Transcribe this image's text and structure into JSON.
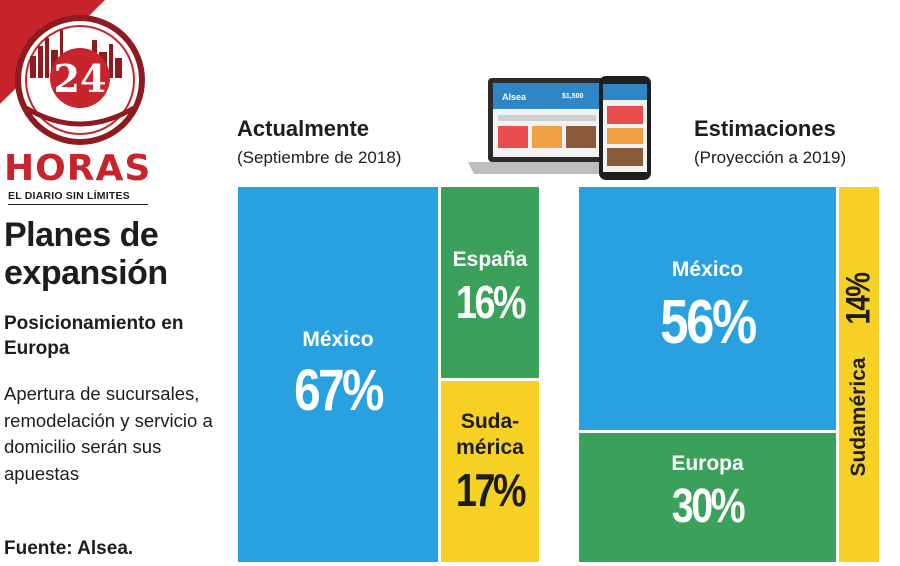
{
  "header": {
    "logo_number": "24",
    "brand_name": "HORAS",
    "brand_tagline": "EL DIARIO SIN LÍMITES"
  },
  "article": {
    "title": "Planes de expansión",
    "subtitle": "Posicionamiento en Europa",
    "description": "Apertura de sucursales, remodelación y servicio a domicilio serán sus apuestas",
    "source": "Fuente: Alsea."
  },
  "illustration": {
    "laptop_screen_text": "Alsea",
    "laptop_screen_price": "$1,500"
  },
  "colors": {
    "mexico": "#29a1e0",
    "espana_europa": "#3aa05a",
    "sudamerica": "#f6d123",
    "brand_red": "#c8242b"
  },
  "chart_data": [
    {
      "type": "treemap",
      "title": "Actualmente",
      "subtitle": "(Septiembre de 2018)",
      "unit": "%",
      "categories": [
        "México",
        "España",
        "Suda-\nmérica"
      ],
      "values": [
        67,
        16,
        17
      ],
      "value_labels": [
        "67%",
        "16%",
        "17%"
      ]
    },
    {
      "type": "treemap",
      "title": "Estimaciones",
      "subtitle": "(Proyección a 2019)",
      "unit": "%",
      "categories": [
        "México",
        "Europa",
        "Sudamérica"
      ],
      "values": [
        56,
        30,
        14
      ],
      "value_labels": [
        "56%",
        "30%",
        "14%"
      ]
    }
  ]
}
